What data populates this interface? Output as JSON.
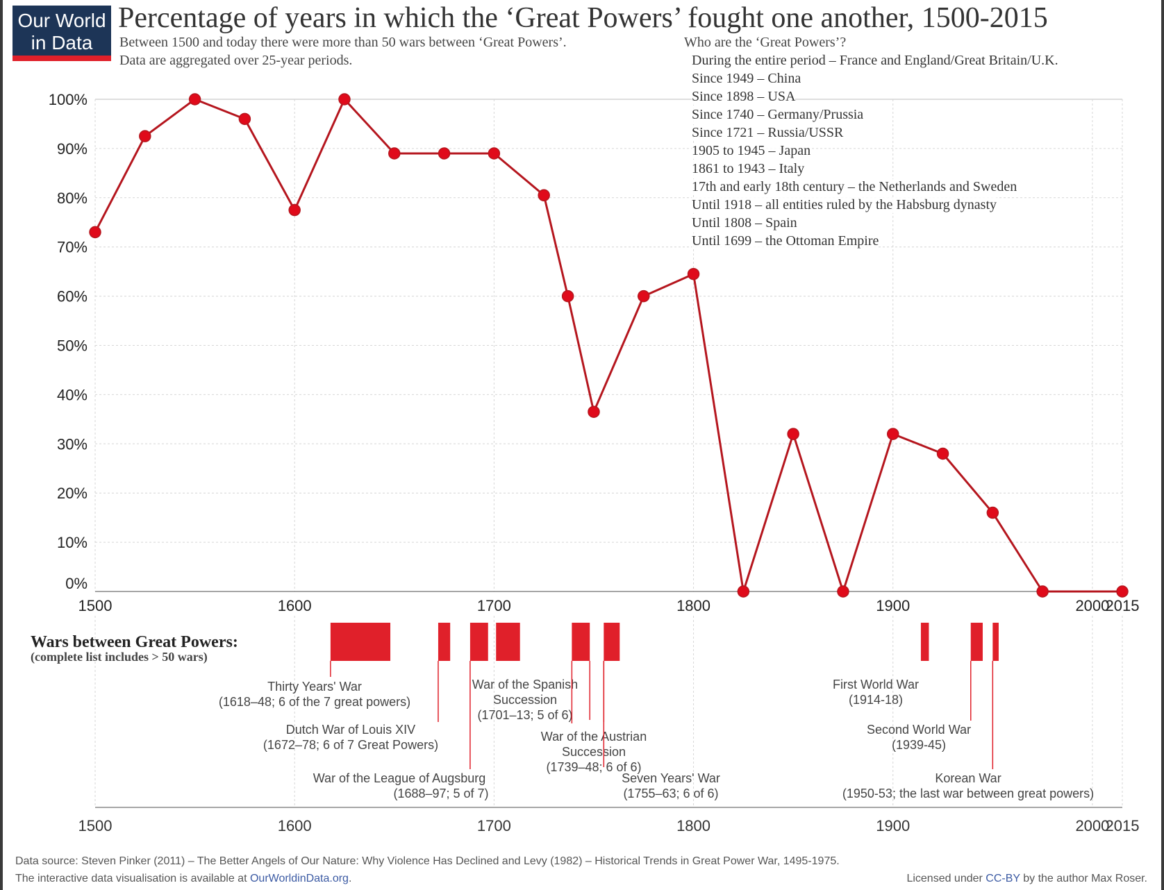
{
  "header": {
    "logo_line1": "Our World",
    "logo_line2": "in Data",
    "title": "Percentage of years in which the ‘Great Powers’ fought one another, 1500-2015",
    "subtitle_line1": "Between 1500 and today there were more than 50 wars between ‘Great Powers’.",
    "subtitle_line2": "Data are aggregated over 25-year periods."
  },
  "great_powers": {
    "heading": "Who are the ‘Great Powers’?",
    "lines": [
      "During the entire period – France and England/Great Britain/U.K.",
      "Since 1949 – China",
      "Since 1898 – USA",
      "Since 1740 – Germany/Prussia",
      "Since 1721 – Russia/USSR",
      "1905 to 1945 – Japan",
      "1861 to 1943 – Italy",
      "17th and early 18th century – the Netherlands and Sweden",
      "Until 1918 – all entities ruled by the Habsburg dynasty",
      "Until 1808 – Spain",
      "Until 1699 – the Ottoman Empire"
    ]
  },
  "wars_section": {
    "title": "Wars between Great Powers:",
    "subtitle": "(complete list includes > 50 wars)"
  },
  "chart_data": {
    "type": "line",
    "title": "Percentage of years in which the ‘Great Powers’ fought one another, 1500-2015",
    "x": [
      1500,
      1525,
      1550,
      1575,
      1600,
      1625,
      1650,
      1675,
      1700,
      1725,
      1737,
      1750,
      1775,
      1800,
      1825,
      1850,
      1875,
      1900,
      1925,
      1950,
      1975,
      2015
    ],
    "values": [
      73,
      92.5,
      100,
      96,
      77.5,
      100,
      89,
      89,
      89,
      80.5,
      60,
      36.5,
      60,
      64.5,
      0,
      32,
      0,
      32,
      28,
      16,
      0,
      0
    ],
    "xlim": [
      1500,
      2015
    ],
    "ylim": [
      0,
      100
    ],
    "x_ticks": [
      "1500",
      "1600",
      "1700",
      "1800",
      "1900",
      "2000",
      "2015"
    ],
    "y_ticks": [
      "0%",
      "10%",
      "20%",
      "30%",
      "40%",
      "50%",
      "60%",
      "70%",
      "80%",
      "90%",
      "100%"
    ],
    "line_color": "#b5161e",
    "marker_color": "#e00a1a",
    "grid": true,
    "wars": [
      {
        "start": 1618,
        "end": 1648,
        "name": "Thirty Years' War",
        "detail": "(1618–48; 6 of the 7 great powers)"
      },
      {
        "start": 1672,
        "end": 1678,
        "name": "Dutch War of Louis XIV",
        "detail": "(1672–78; 6 of 7 Great Powers)"
      },
      {
        "start": 1688,
        "end": 1697,
        "name": "War of the League of Augsburg",
        "detail": "(1688–97; 5 of 7)"
      },
      {
        "start": 1701,
        "end": 1713,
        "name": "War of the Spanish",
        "name2": "Succession",
        "detail": "(1701–13; 5 of 6)"
      },
      {
        "start": 1739,
        "end": 1748,
        "name": "War of the Austrian",
        "name2": "Succession",
        "detail": "(1739–48; 6 of 6)"
      },
      {
        "start": 1755,
        "end": 1763,
        "name": "Seven Years' War",
        "detail": "(1755–63; 6 of 6)"
      },
      {
        "start": 1914,
        "end": 1918,
        "name": "First World War",
        "detail": "(1914-18)"
      },
      {
        "start": 1939,
        "end": 1945,
        "name": "Second World War",
        "detail": "(1939-45)"
      },
      {
        "start": 1950,
        "end": 1953,
        "name": "Korean War",
        "detail": "(1950-53; the last war between great powers)"
      }
    ],
    "war_bar_color": "#e0202a"
  },
  "footer": {
    "source": "Data source: Steven Pinker (2011) – The Better Angels of Our Nature: Why Violence Has Declined and Levy (1982) – Historical Trends in Great Power War, 1495-1975.",
    "interactive_prefix": "The interactive data visualisation is available at ",
    "interactive_link": "OurWorldinData.org",
    "interactive_suffix": ".",
    "license_prefix": "Licensed under ",
    "license_link": "CC-BY",
    "license_suffix": " by the author Max Roser."
  }
}
